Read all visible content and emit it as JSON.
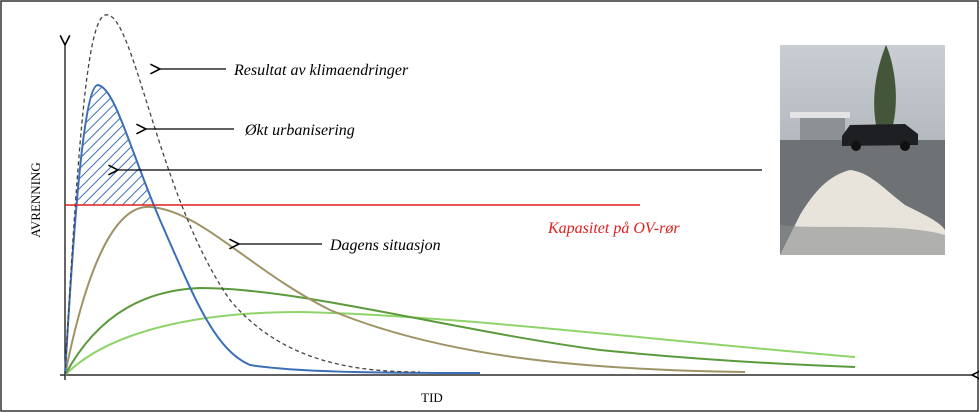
{
  "labels": {
    "climate": "Resultat av klimaendringer",
    "urban": "Økt urbanisering",
    "today": "Dagens situasjon",
    "capacity": "Kapasitet på OV-rør"
  },
  "axes": {
    "y": "AVRENNING",
    "x": "TID"
  }
}
